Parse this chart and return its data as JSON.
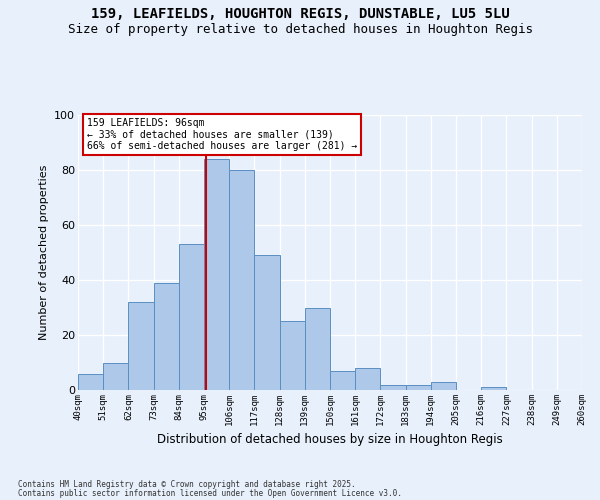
{
  "title1": "159, LEAFIELDS, HOUGHTON REGIS, DUNSTABLE, LU5 5LU",
  "title2": "Size of property relative to detached houses in Houghton Regis",
  "xlabel": "Distribution of detached houses by size in Houghton Regis",
  "ylabel": "Number of detached properties",
  "bin_labels": [
    "40sqm",
    "51sqm",
    "62sqm",
    "73sqm",
    "84sqm",
    "95sqm",
    "106sqm",
    "117sqm",
    "128sqm",
    "139sqm",
    "150sqm",
    "161sqm",
    "172sqm",
    "183sqm",
    "194sqm",
    "205sqm",
    "216sqm",
    "227sqm",
    "238sqm",
    "249sqm",
    "260sqm"
  ],
  "bin_edges": [
    40,
    51,
    62,
    73,
    84,
    95,
    106,
    117,
    128,
    139,
    150,
    161,
    172,
    183,
    194,
    205,
    216,
    227,
    238,
    249,
    260
  ],
  "bar_heights": [
    6,
    10,
    32,
    39,
    53,
    84,
    80,
    49,
    25,
    30,
    7,
    8,
    2,
    2,
    3,
    0,
    1,
    0,
    0,
    0
  ],
  "bar_color": "#adc8e8",
  "bar_edge_color": "#5a8fc2",
  "vline_x": 96,
  "vline_color": "#cc0000",
  "annotation_text": "159 LEAFIELDS: 96sqm\n← 33% of detached houses are smaller (139)\n66% of semi-detached houses are larger (281) →",
  "annotation_box_facecolor": "#ffffff",
  "annotation_box_edgecolor": "#cc0000",
  "bg_color": "#e8f0fb",
  "ylim": [
    0,
    100
  ],
  "yticks": [
    0,
    20,
    40,
    60,
    80,
    100
  ],
  "footer1": "Contains HM Land Registry data © Crown copyright and database right 2025.",
  "footer2": "Contains public sector information licensed under the Open Government Licence v3.0."
}
